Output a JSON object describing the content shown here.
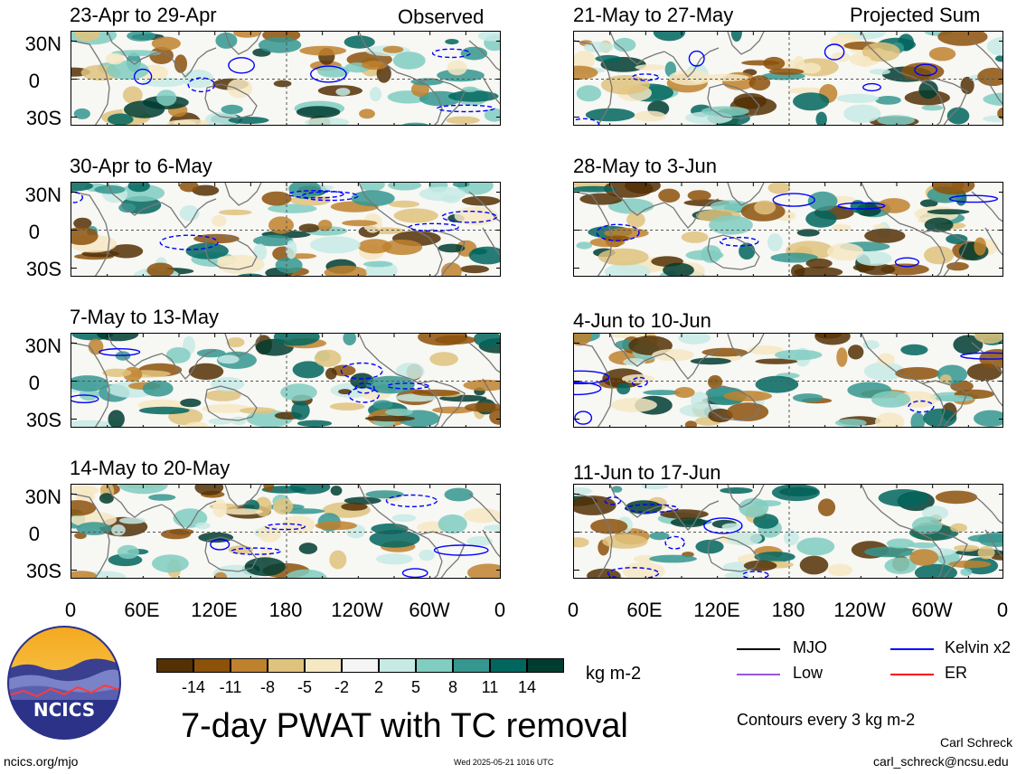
{
  "headers": {
    "left": "Observed",
    "right": "Projected Sum"
  },
  "panels": [
    {
      "title": "23-Apr to 29-Apr"
    },
    {
      "title": "21-May to 27-May"
    },
    {
      "title": "30-Apr to 6-May"
    },
    {
      "title": "28-May to 3-Jun"
    },
    {
      "title": "7-May to 13-May"
    },
    {
      "title": "4-Jun to 10-Jun"
    },
    {
      "title": "14-May to 20-May"
    },
    {
      "title": "11-Jun to 17-Jun"
    }
  ],
  "lat_labels": [
    "30N",
    "0",
    "30S"
  ],
  "lon_labels": [
    "0",
    "60E",
    "120E",
    "180",
    "120W",
    "60W",
    "0"
  ],
  "colorbar": {
    "ticks": [
      "-14",
      "-11",
      "-8",
      "-5",
      "-2",
      "2",
      "5",
      "8",
      "11",
      "14"
    ],
    "units": "kg m-2",
    "colors": [
      "#543005",
      "#8c510a",
      "#bf812d",
      "#dfc27d",
      "#f6e8c3",
      "#f5f5f5",
      "#c7eae5",
      "#80cdc1",
      "#35978f",
      "#01665e",
      "#003c30"
    ]
  },
  "legend": {
    "items": [
      {
        "label": "MJO",
        "color": "#000000"
      },
      {
        "label": "Kelvin x2",
        "color": "#0000ff"
      },
      {
        "label": "Low",
        "color": "#9955dd"
      },
      {
        "label": "ER",
        "color": "#ff0000"
      }
    ],
    "contours_note": "Contours every 3 kg m-2"
  },
  "main_title": "7-day PWAT with TC removal",
  "logo_text": "NCICS",
  "footer": {
    "url": "ncics.org/mjo",
    "timestamp": "Wed 2025-05-21 1016 UTC",
    "author": "Carl Schreck",
    "email": "carl_schreck@ncsu.edu"
  }
}
